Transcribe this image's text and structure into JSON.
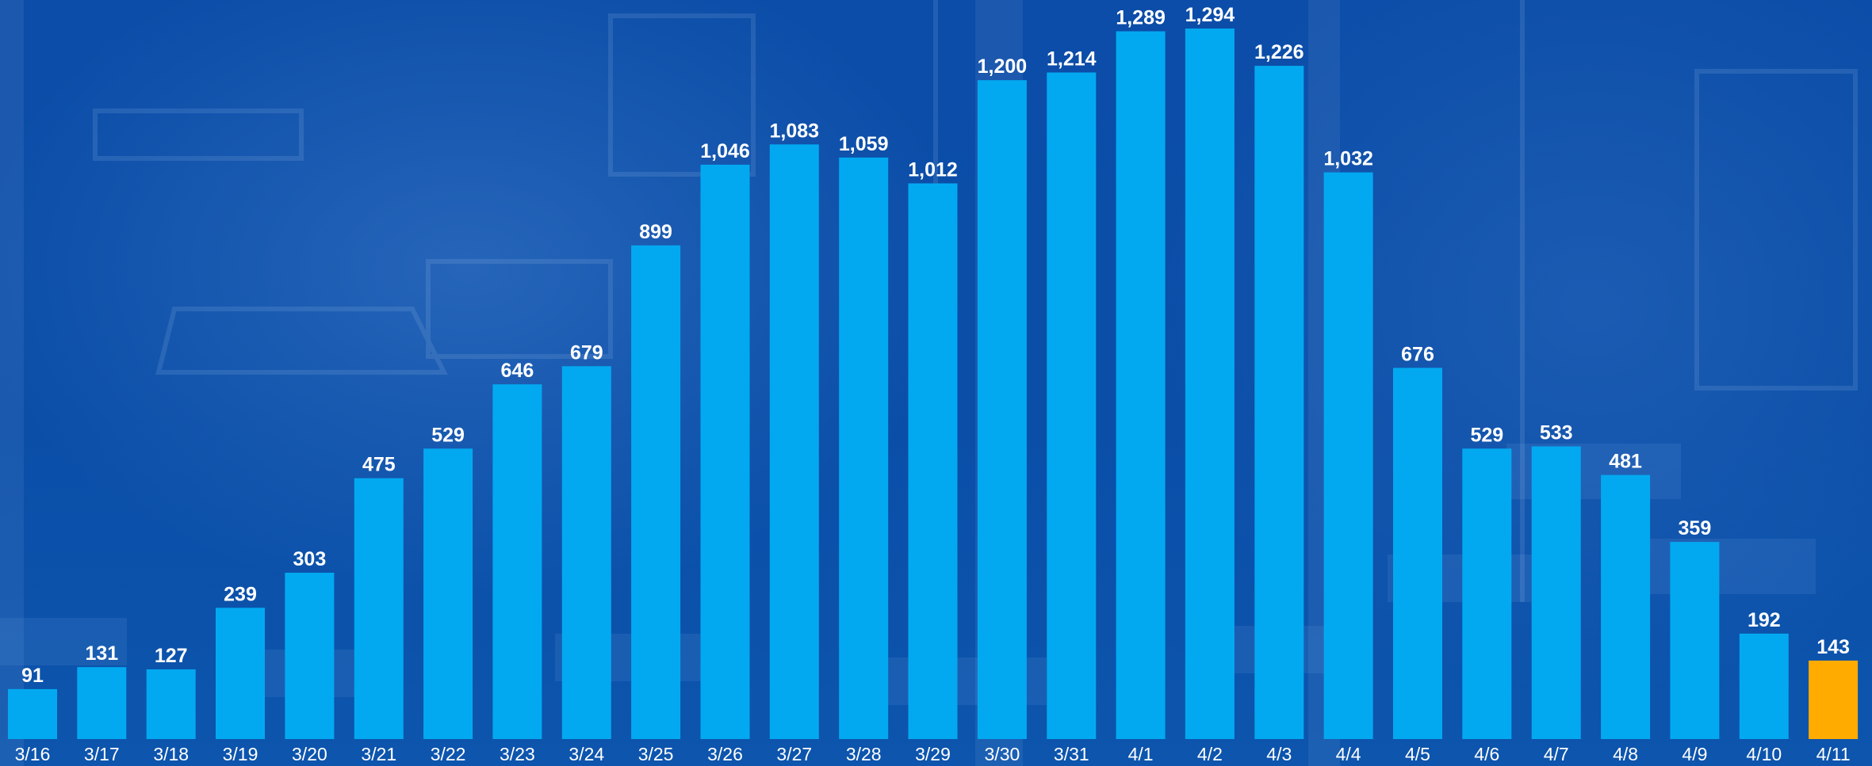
{
  "chart_data": {
    "type": "bar",
    "title": "",
    "xlabel": "",
    "ylabel": "",
    "categories": [
      "3/16",
      "3/17",
      "3/18",
      "3/19",
      "3/20",
      "3/21",
      "3/22",
      "3/23",
      "3/24",
      "3/25",
      "3/26",
      "3/27",
      "3/28",
      "3/29",
      "3/30",
      "3/31",
      "4/1",
      "4/2",
      "4/3",
      "4/4",
      "4/5",
      "4/6",
      "4/7",
      "4/8",
      "4/9",
      "4/10",
      "4/11"
    ],
    "values": [
      91,
      131,
      127,
      239,
      303,
      475,
      529,
      646,
      679,
      899,
      1046,
      1083,
      1059,
      1012,
      1200,
      1214,
      1289,
      1294,
      1226,
      1032,
      676,
      529,
      533,
      481,
      359,
      192,
      143
    ],
    "data_labels": [
      "91",
      "131",
      "127",
      "239",
      "303",
      "475",
      "529",
      "646",
      "679",
      "899",
      "1,046",
      "1,083",
      "1,059",
      "1,012",
      "1,200",
      "1,214",
      "1,289",
      "1,294",
      "1,226",
      "1,032",
      "676",
      "529",
      "533",
      "481",
      "359",
      "192",
      "143"
    ],
    "ylim": [
      0,
      1294
    ],
    "grid": false,
    "legend": "none",
    "colors": {
      "bar": "#03a9f0",
      "highlight_bar": "#ffab00",
      "label_text": "#ffffff",
      "background": "#0a4ea8"
    },
    "highlight_index": 26
  }
}
